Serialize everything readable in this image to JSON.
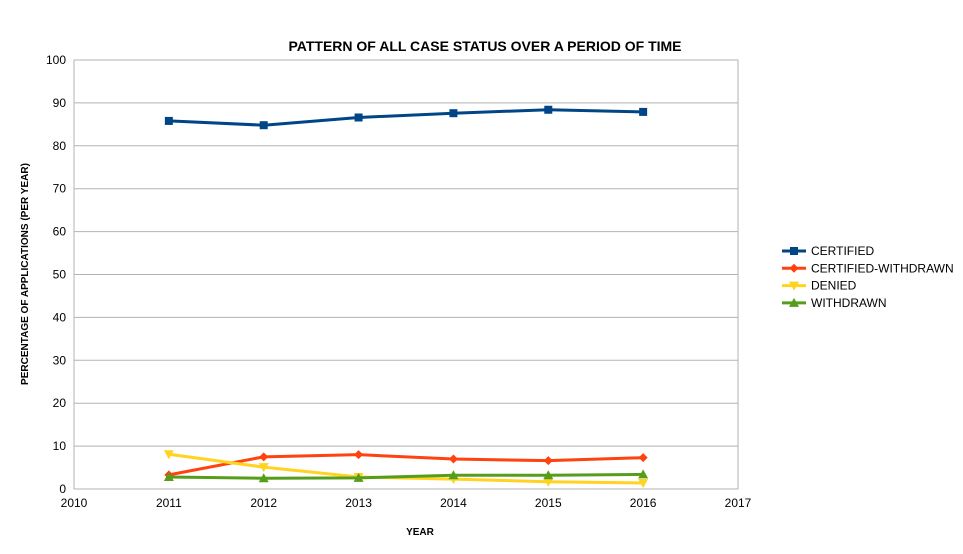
{
  "chart_data": {
    "type": "line",
    "title": "PATTERN OF ALL CASE STATUS OVER A PERIOD OF TIME",
    "xlabel": "YEAR",
    "ylabel": "PERCENTAGE OF APPLICATIONS (PER YEAR)",
    "xlim": [
      2010,
      2017
    ],
    "ylim": [
      0,
      100
    ],
    "x_ticks": [
      "2010",
      "2011",
      "2012",
      "2013",
      "2014",
      "2015",
      "2016",
      "2017"
    ],
    "y_ticks": [
      "0",
      "10",
      "20",
      "30",
      "40",
      "50",
      "60",
      "70",
      "80",
      "90",
      "100"
    ],
    "grid": true,
    "legend_position": "right",
    "x": [
      2011,
      2012,
      2013,
      2014,
      2015,
      2016
    ],
    "series": [
      {
        "name": "CERTIFIED",
        "color": "#004586",
        "marker": "square",
        "values": [
          85.8,
          84.8,
          86.6,
          87.6,
          88.4,
          87.9
        ]
      },
      {
        "name": "CERTIFIED-WITHDRAWN",
        "color": "#ff420e",
        "marker": "diamond",
        "values": [
          3.3,
          7.5,
          8.0,
          7.0,
          6.6,
          7.3
        ]
      },
      {
        "name": "DENIED",
        "color": "#ffd320",
        "marker": "triangle-down",
        "values": [
          8.1,
          5.1,
          2.8,
          2.3,
          1.7,
          1.4
        ]
      },
      {
        "name": "WITHDRAWN",
        "color": "#579d1c",
        "marker": "triangle-up",
        "values": [
          2.8,
          2.5,
          2.6,
          3.2,
          3.2,
          3.4
        ]
      }
    ]
  }
}
